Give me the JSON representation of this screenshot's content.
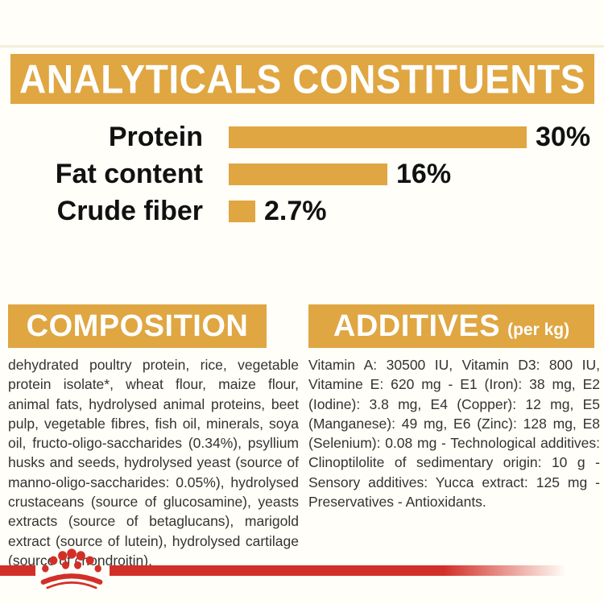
{
  "page": {
    "background": "#FFFEF8",
    "accent_gold": "#DFA642",
    "accent_red": "#D22F28"
  },
  "header": {
    "title": "ANALYTICALS CONSTITUENTS"
  },
  "chart_data": {
    "type": "bar",
    "orientation": "horizontal",
    "title": "ANALYTICALS CONSTITUENTS",
    "categories": [
      "Protein",
      "Fat content",
      "Crude fiber"
    ],
    "values": [
      30,
      16,
      2.7
    ],
    "value_labels": [
      "30%",
      "16%",
      "2.7%"
    ],
    "unit": "%",
    "xlim": [
      0,
      30
    ],
    "bar_color": "#DFA642",
    "grid": false,
    "legend": false
  },
  "composition": {
    "heading": "COMPOSITION",
    "body": "dehydrated poultry protein, rice, vegetable protein isolate*, wheat flour, maize flour, animal fats, hydrolysed animal proteins, beet pulp, vegetable fibres, fish oil, minerals, soya oil, fructo-oligo-saccharides (0.34%), psyllium husks and seeds, hydrolysed yeast (source of manno-oligo-saccharides: 0.05%), hydrolysed crustaceans (source of glucosamine), yeasts extracts (source of betaglucans), marigold extract (source of lutein), hydrolysed cartilage (source of chondroitin)."
  },
  "additives": {
    "heading": "ADDITIVES",
    "heading_suffix": "(per kg)",
    "body": "Vitamin A: 30500 IU, Vitamin D3: 800 IU, Vitamine E: 620 mg - E1 (Iron): 38 mg, E2 (Iodine): 3.8 mg, E4 (Copper): 12 mg, E5 (Manganese): 49 mg, E6 (Zinc): 128 mg, E8 (Selenium): 0.08 mg - Technological additives: Clinoptilolite of sedimentary origin: 10 g - Sensory additives: Yucca extract: 125 mg - Preservatives - Antioxidants."
  },
  "footer": {
    "logo": "royal-canin-crown-paw-logo"
  }
}
